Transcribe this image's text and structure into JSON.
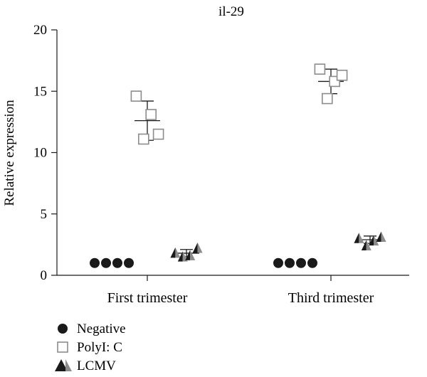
{
  "chart_data": {
    "type": "scatter",
    "title": "il-29",
    "ylabel": "Relative expression",
    "xlabel": "",
    "ylim": [
      0,
      20
    ],
    "yticks": [
      0,
      5,
      10,
      15,
      20
    ],
    "grid": false,
    "legend_position": "bottom-left",
    "categories": [
      "First trimester",
      "Third trimester"
    ],
    "series": [
      {
        "name": "Negative",
        "marker": "filled-circle",
        "color": "#1a1a1a",
        "groups": [
          {
            "category": "First trimester",
            "points": [
              1.0,
              1.0,
              1.0,
              1.0
            ],
            "mean": 1.0,
            "error": 0
          },
          {
            "category": "Third trimester",
            "points": [
              1.0,
              1.0,
              1.0,
              1.0
            ],
            "mean": 1.0,
            "error": 0
          }
        ]
      },
      {
        "name": "PolyI: C",
        "marker": "open-square",
        "color": "#8c8c8c",
        "groups": [
          {
            "category": "First trimester",
            "points": [
              14.6,
              11.1,
              13.1,
              11.5
            ],
            "mean": 12.6,
            "error": 1.6
          },
          {
            "category": "Third trimester",
            "points": [
              16.8,
              14.4,
              15.8,
              16.3
            ],
            "mean": 15.8,
            "error": 1.0
          }
        ]
      },
      {
        "name": "LCMV",
        "marker": "half-filled-triangle",
        "color": "#1a1a1a",
        "color_alt": "#8c8c8c",
        "groups": [
          {
            "category": "First trimester",
            "points": [
              1.8,
              1.5,
              1.6,
              2.2
            ],
            "mean": 1.8,
            "error": 0.3
          },
          {
            "category": "Third trimester",
            "points": [
              3.0,
              2.4,
              2.8,
              3.1
            ],
            "mean": 2.9,
            "error": 0.3
          }
        ]
      }
    ]
  }
}
